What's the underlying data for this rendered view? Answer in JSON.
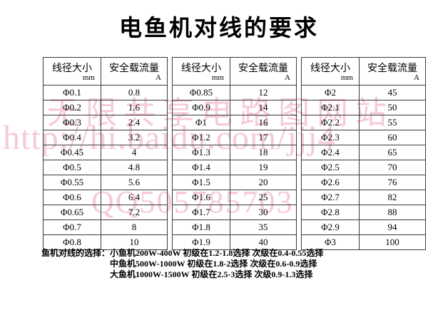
{
  "title": "电鱼机对线的要求",
  "tables": [
    {
      "col1_header": "线径大小",
      "col1_unit": "mm",
      "col2_header": "安全载流量",
      "col2_unit": "A",
      "rows": [
        [
          "Φ0.1",
          "0.8"
        ],
        [
          "Φ0.2",
          "1.6"
        ],
        [
          "Φ0.3",
          "2.4"
        ],
        [
          "Φ0.4",
          "3.2"
        ],
        [
          "Φ0.45",
          "4"
        ],
        [
          "Φ0.5",
          "4.8"
        ],
        [
          "Φ0.55",
          "5.6"
        ],
        [
          "Φ0.6",
          "6.4"
        ],
        [
          "Φ0.65",
          "7.2"
        ],
        [
          "Φ0.7",
          "8"
        ],
        [
          "Φ0.8",
          "10"
        ]
      ]
    },
    {
      "col1_header": "线径大小",
      "col1_unit": "mm",
      "col2_header": "安全载流量",
      "col2_unit": "A",
      "rows": [
        [
          "Φ0.85",
          "12"
        ],
        [
          "Φ0.9",
          "14"
        ],
        [
          "Φ1",
          "16"
        ],
        [
          "Φ1.2",
          "17"
        ],
        [
          "Φ1.3",
          "18"
        ],
        [
          "Φ1.4",
          "19"
        ],
        [
          "Φ1.5",
          "20"
        ],
        [
          "Φ1.6",
          "25"
        ],
        [
          "Φ1.7",
          "30"
        ],
        [
          "Φ1.8",
          "35"
        ],
        [
          "Φ1.9",
          "40"
        ]
      ]
    },
    {
      "col1_header": "线径大小",
      "col1_unit": "mm",
      "col2_header": "安全载流量",
      "col2_unit": "A",
      "rows": [
        [
          "Φ2",
          "45"
        ],
        [
          "Φ2.1",
          "50"
        ],
        [
          "Φ2.2",
          "55"
        ],
        [
          "Φ2.3",
          "60"
        ],
        [
          "Φ2.4",
          "65"
        ],
        [
          "Φ2.5",
          "70"
        ],
        [
          "Φ2.6",
          "76"
        ],
        [
          "Φ2.7",
          "82"
        ],
        [
          "Φ2.8",
          "88"
        ],
        [
          "Φ2.9",
          "94"
        ],
        [
          "Φ3",
          "100"
        ]
      ]
    }
  ],
  "footer": {
    "label": "鱼机对线的选择：",
    "lines": [
      "小鱼机200W-400W 初级在1.2-1.8选择 次级在0.4-0.55选择",
      "中鱼机500W-1000W 初级在1.8-2选择 次级在0.6-0.9选择",
      "大鱼机1000W-1500W 初级在2.5-3选择 次级0.9-1.3选择"
    ]
  },
  "watermarks": {
    "site": "无限共享电路图网站",
    "url": "http://hi.baidu.com/jjj4",
    "qq": "QQ505785703"
  },
  "colors": {
    "background": "#ffffff",
    "text": "#000000",
    "border": "#3a3a3a",
    "watermark_pink": "#e8829e"
  }
}
